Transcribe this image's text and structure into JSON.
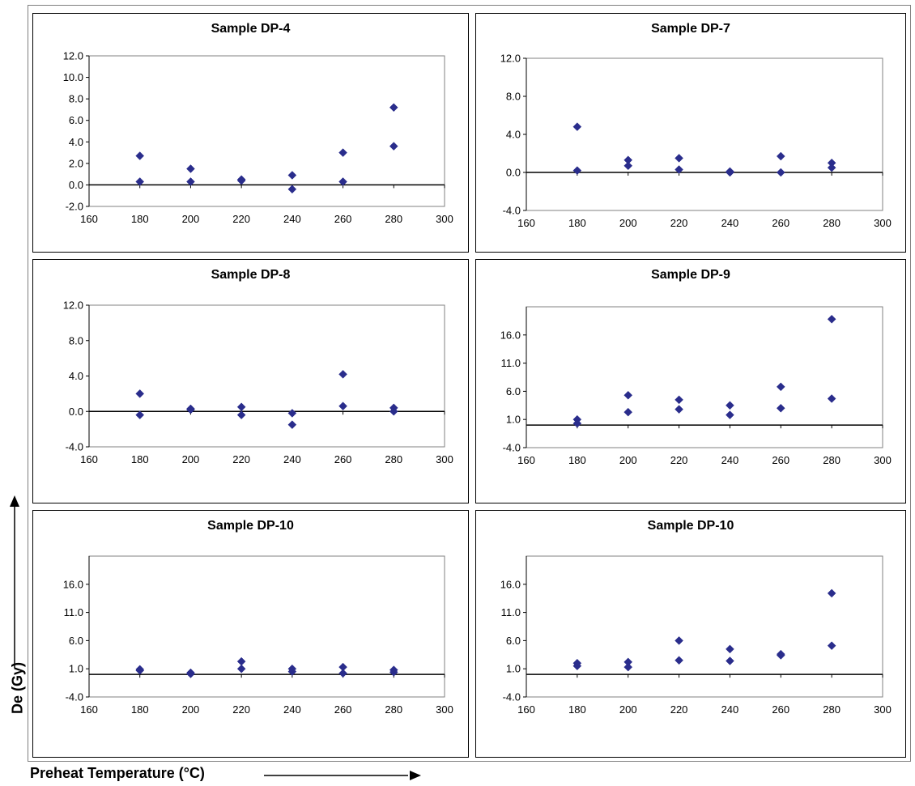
{
  "axis_titles": {
    "y": "De (Gy)",
    "x": "Preheat Temperature (°C)"
  },
  "colors": {
    "marker": "#2a2d8c",
    "zero_line": "#000000",
    "plot_border": "#808080",
    "tick": "#000000"
  },
  "chart_data": [
    {
      "type": "scatter",
      "title": "Sample DP-4",
      "xlim": [
        160,
        300
      ],
      "xticks": [
        160,
        180,
        200,
        220,
        240,
        260,
        280,
        300
      ],
      "ylim": [
        -2,
        12
      ],
      "yticks": [
        -2,
        0,
        2,
        4,
        6,
        8,
        10,
        12
      ],
      "ytick_labels": [
        "-2.0",
        "0.0",
        "2.0",
        "4.0",
        "6.0",
        "8.0",
        "10.0",
        "12.0"
      ],
      "points": [
        [
          180,
          2.7
        ],
        [
          180,
          0.3
        ],
        [
          200,
          1.5
        ],
        [
          200,
          0.3
        ],
        [
          220,
          0.5
        ],
        [
          220,
          0.4
        ],
        [
          240,
          0.9
        ],
        [
          240,
          -0.4
        ],
        [
          260,
          3.0
        ],
        [
          260,
          0.3
        ],
        [
          280,
          7.2
        ],
        [
          280,
          3.6
        ]
      ]
    },
    {
      "type": "scatter",
      "title": "Sample DP-7",
      "xlim": [
        160,
        300
      ],
      "xticks": [
        160,
        180,
        200,
        220,
        240,
        260,
        280,
        300
      ],
      "ylim": [
        -4,
        12
      ],
      "yticks": [
        -4,
        0,
        4,
        8,
        12
      ],
      "ytick_labels": [
        "-4.0",
        "0.0",
        "4.0",
        "8.0",
        "12.0"
      ],
      "points": [
        [
          180,
          4.8
        ],
        [
          180,
          0.2
        ],
        [
          200,
          1.3
        ],
        [
          200,
          0.7
        ],
        [
          220,
          1.5
        ],
        [
          220,
          0.3
        ],
        [
          240,
          0.1
        ],
        [
          240,
          0.0
        ],
        [
          260,
          1.7
        ],
        [
          260,
          0.0
        ],
        [
          280,
          1.0
        ],
        [
          280,
          0.5
        ]
      ]
    },
    {
      "type": "scatter",
      "title": "Sample DP-8",
      "xlim": [
        160,
        300
      ],
      "xticks": [
        160,
        180,
        200,
        220,
        240,
        260,
        280,
        300
      ],
      "ylim": [
        -4,
        12
      ],
      "yticks": [
        -4,
        0,
        4,
        8,
        12
      ],
      "ytick_labels": [
        "-4.0",
        "0.0",
        "4.0",
        "8.0",
        "12.0"
      ],
      "points": [
        [
          180,
          2.0
        ],
        [
          180,
          -0.4
        ],
        [
          200,
          0.3
        ],
        [
          200,
          0.2
        ],
        [
          220,
          0.5
        ],
        [
          220,
          -0.4
        ],
        [
          240,
          -0.2
        ],
        [
          240,
          -1.5
        ],
        [
          260,
          4.2
        ],
        [
          260,
          0.6
        ],
        [
          280,
          0.4
        ],
        [
          280,
          0.0
        ]
      ]
    },
    {
      "type": "scatter",
      "title": "Sample DP-9",
      "xlim": [
        160,
        300
      ],
      "xticks": [
        160,
        180,
        200,
        220,
        240,
        260,
        280,
        300
      ],
      "ylim": [
        -4,
        21
      ],
      "yticks": [
        -4,
        1,
        6,
        11,
        16
      ],
      "ytick_labels": [
        "-4.0",
        "1.0",
        "6.0",
        "11.0",
        "16.0"
      ],
      "points": [
        [
          180,
          1.0
        ],
        [
          180,
          0.3
        ],
        [
          200,
          5.3
        ],
        [
          200,
          2.3
        ],
        [
          220,
          4.5
        ],
        [
          220,
          2.8
        ],
        [
          240,
          3.5
        ],
        [
          240,
          1.8
        ],
        [
          260,
          6.8
        ],
        [
          260,
          3.0
        ],
        [
          280,
          18.8
        ],
        [
          280,
          4.7
        ]
      ]
    },
    {
      "type": "scatter",
      "title": "Sample DP-10",
      "xlim": [
        160,
        300
      ],
      "xticks": [
        160,
        180,
        200,
        220,
        240,
        260,
        280,
        300
      ],
      "ylim": [
        -4,
        21
      ],
      "yticks": [
        -4,
        1,
        6,
        11,
        16
      ],
      "ytick_labels": [
        "-4.0",
        "1.0",
        "6.0",
        "11.0",
        "16.0"
      ],
      "points": [
        [
          180,
          0.9
        ],
        [
          180,
          0.7
        ],
        [
          200,
          0.3
        ],
        [
          200,
          0.1
        ],
        [
          220,
          2.3
        ],
        [
          220,
          1.0
        ],
        [
          240,
          1.0
        ],
        [
          240,
          0.5
        ],
        [
          260,
          1.3
        ],
        [
          260,
          0.2
        ],
        [
          280,
          0.8
        ],
        [
          280,
          0.4
        ]
      ]
    },
    {
      "type": "scatter",
      "title": "Sample DP-10",
      "xlim": [
        160,
        300
      ],
      "xticks": [
        160,
        180,
        200,
        220,
        240,
        260,
        280,
        300
      ],
      "ylim": [
        -4,
        21
      ],
      "yticks": [
        -4,
        1,
        6,
        11,
        16
      ],
      "ytick_labels": [
        "-4.0",
        "1.0",
        "6.0",
        "11.0",
        "16.0"
      ],
      "points": [
        [
          180,
          2.0
        ],
        [
          180,
          1.5
        ],
        [
          200,
          2.2
        ],
        [
          200,
          1.3
        ],
        [
          220,
          6.0
        ],
        [
          220,
          2.5
        ],
        [
          240,
          4.5
        ],
        [
          240,
          2.4
        ],
        [
          260,
          3.6
        ],
        [
          260,
          3.4
        ],
        [
          280,
          14.4
        ],
        [
          280,
          5.1
        ]
      ]
    }
  ]
}
